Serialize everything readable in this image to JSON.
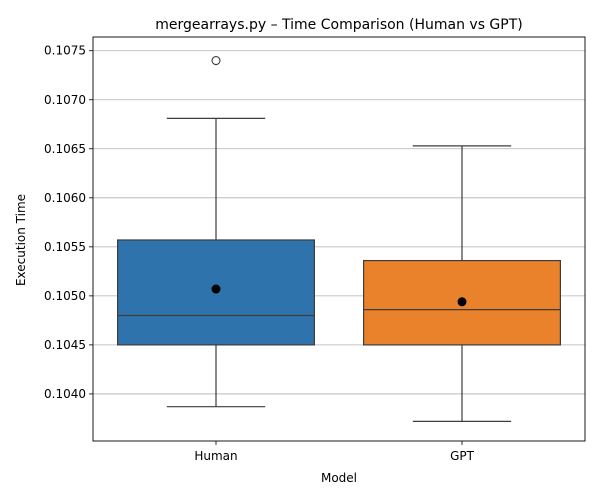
{
  "chart_data": {
    "type": "box",
    "title": "mergearrays.py – Time Comparison (Human vs GPT)",
    "xlabel": "Model",
    "ylabel": "Execution Time",
    "ylim": [
      0.10352,
      0.10764
    ],
    "yticks": [
      0.104,
      0.1045,
      0.105,
      0.1055,
      0.106,
      0.1065,
      0.107,
      0.1075
    ],
    "grid": "y",
    "categories": [
      "Human",
      "GPT"
    ],
    "series": [
      {
        "whisker_low": 0.10387,
        "q1": 0.1045,
        "median": 0.1048,
        "q3": 0.10557,
        "whisker_high": 0.10681,
        "mean": 0.10507,
        "outliers": [
          0.1074
        ],
        "color": "#2f73ad"
      },
      {
        "whisker_low": 0.10372,
        "q1": 0.1045,
        "median": 0.10486,
        "q3": 0.10536,
        "whisker_high": 0.10653,
        "mean": 0.10494,
        "outliers": [],
        "color": "#e9822a"
      }
    ]
  }
}
